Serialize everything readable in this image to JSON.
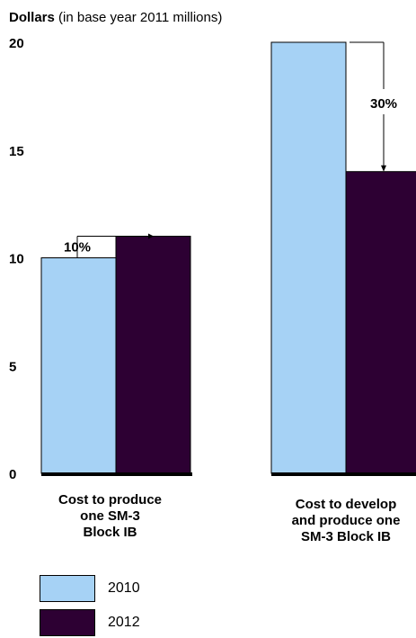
{
  "chart_data": {
    "type": "bar",
    "title_bold": "Dollars",
    "title_rest": " (in base year 2011 millions)",
    "categories": [
      "Cost to produce\none SM-3\nBlock IB",
      "Cost to develop\nand produce one\nSM-3 Block IB"
    ],
    "series": [
      {
        "name": "2010",
        "color": "#a6d2f5",
        "values": [
          10,
          20
        ]
      },
      {
        "name": "2012",
        "color": "#2d0033",
        "values": [
          11,
          14
        ]
      }
    ],
    "ylim": [
      0,
      20
    ],
    "yticks": [
      0,
      5,
      10,
      15,
      20
    ],
    "annotations": [
      {
        "text": "10%",
        "category": 0
      },
      {
        "text": "30%",
        "category": 1
      }
    ],
    "legend_position": "bottom-left"
  }
}
